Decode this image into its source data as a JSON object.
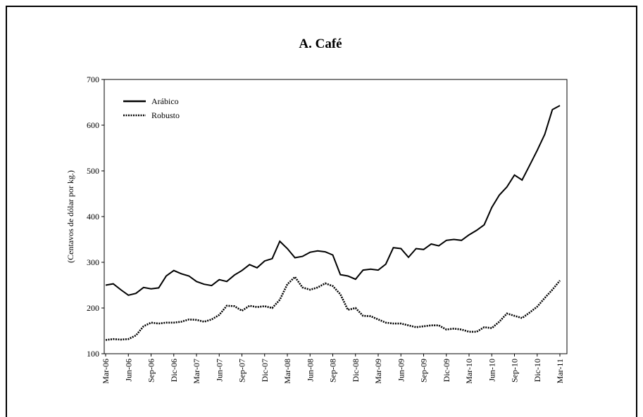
{
  "chart_data": {
    "type": "line",
    "title": "A. Café",
    "y_label": "(Centavos de dólar por kg.)",
    "categories": [
      "Mar-06",
      null,
      null,
      "Jun-06",
      null,
      null,
      "Sep-06",
      null,
      null,
      "Dic-06",
      null,
      null,
      "Mar-07",
      null,
      null,
      "Jun-07",
      null,
      null,
      "Sep-07",
      null,
      null,
      "Dic-07",
      null,
      null,
      "Mar-08",
      null,
      null,
      "Jun-08",
      null,
      null,
      "Sep-08",
      null,
      null,
      "Dic-08",
      null,
      null,
      "Mar-09",
      null,
      null,
      "Jun-09",
      null,
      null,
      "Sep-09",
      null,
      null,
      "Dic-09",
      null,
      null,
      "Mar-10",
      null,
      null,
      "Jun-10",
      null,
      null,
      "Sep-10",
      null,
      null,
      "Dic-10",
      null,
      null,
      "Mar-11"
    ],
    "series": [
      {
        "name": "Arábico",
        "color": "#000000",
        "dash": "solid",
        "values": [
          250,
          253,
          240,
          228,
          232,
          245,
          242,
          244,
          270,
          282,
          275,
          270,
          258,
          252,
          249,
          262,
          258,
          272,
          282,
          295,
          288,
          303,
          308,
          346,
          330,
          310,
          313,
          322,
          325,
          323,
          316,
          273,
          270,
          263,
          283,
          285,
          283,
          296,
          332,
          330,
          311,
          330,
          328,
          340,
          336,
          348,
          350,
          348,
          360,
          370,
          382,
          420,
          447,
          465,
          491,
          480,
          512,
          545,
          580,
          634,
          643
        ]
      },
      {
        "name": "Robusto",
        "color": "#000000",
        "dash": "dotted",
        "values": [
          130,
          132,
          131,
          132,
          140,
          160,
          168,
          166,
          168,
          168,
          170,
          175,
          174,
          170,
          175,
          185,
          205,
          204,
          194,
          205,
          202,
          204,
          200,
          218,
          252,
          268,
          245,
          240,
          245,
          254,
          248,
          230,
          196,
          200,
          183,
          182,
          175,
          168,
          166,
          166,
          162,
          158,
          160,
          162,
          162,
          153,
          155,
          153,
          148,
          148,
          158,
          156,
          170,
          188,
          183,
          178,
          190,
          203,
          222,
          240,
          260
        ]
      }
    ],
    "ylim": [
      100,
      700
    ],
    "yticks": [
      100,
      200,
      300,
      400,
      500,
      600,
      700
    ],
    "grid": false,
    "legend": "top-left"
  }
}
